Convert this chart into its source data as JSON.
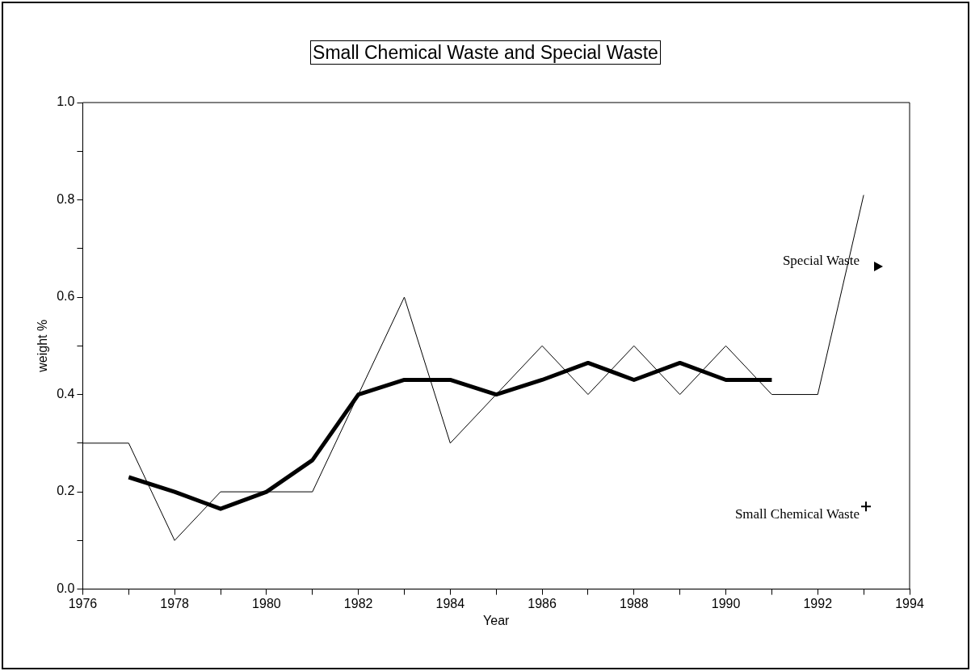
{
  "chart_data": {
    "type": "line",
    "title": "Small Chemical Waste and Special Waste",
    "xlabel": "Year",
    "ylabel": "weight %",
    "xlim": [
      1976,
      1994
    ],
    "xticks": [
      1976,
      {
        "value": 1977,
        "label": null
      },
      1978,
      {
        "value": 1979,
        "label": null
      },
      1980,
      {
        "value": 1981,
        "label": null
      },
      1982,
      {
        "value": 1983,
        "label": null
      },
      1984,
      {
        "value": 1985,
        "label": null
      },
      1986,
      {
        "value": 1987,
        "label": null
      },
      1988,
      {
        "value": 1989,
        "label": null
      },
      1990,
      {
        "value": 1991,
        "label": null
      },
      1992,
      {
        "value": 1993,
        "label": null
      },
      1994
    ],
    "ylim": [
      0,
      1
    ],
    "yticks": [
      {
        "value": 0,
        "label": "0.0"
      },
      {
        "value": 0.1,
        "label": null
      },
      0.2,
      {
        "value": 0.3,
        "label": null
      },
      0.4,
      {
        "value": 0.5,
        "label": null
      },
      0.6,
      {
        "value": 0.7,
        "label": null
      },
      0.8,
      {
        "value": 0.9,
        "label": null
      },
      {
        "value": 1,
        "label": "1.0"
      }
    ],
    "grid": false,
    "legend": "right",
    "marker": "none",
    "line_style": "solid",
    "series": [
      {
        "name": "Special Waste",
        "color": "#000000",
        "x": [
          1976,
          1977,
          1978,
          1979,
          1980,
          1981,
          1982,
          1983,
          1984,
          1985,
          1986,
          1987,
          1988,
          1989,
          1990,
          1991,
          1992,
          1993
        ],
        "values": [
          0.3,
          0.3,
          0.1,
          0.2,
          0.2,
          0.2,
          0.4,
          0.6,
          0.3,
          0.4,
          0.5,
          0.4,
          0.5,
          0.4,
          0.5,
          0.4,
          0.4,
          0.81
        ]
      },
      {
        "name": "Small Chemical Waste",
        "color": "#000000",
        "x": [
          1977,
          1978,
          1979,
          1980,
          1981,
          1982,
          1983,
          1984,
          1985,
          1986,
          1987,
          1988,
          1989,
          1990,
          1991
        ],
        "values": [
          0.23,
          0.2,
          0.165,
          0.2,
          0.265,
          0.4,
          0.43,
          0.43,
          0.4,
          0.43,
          0.465,
          0.43,
          0.465,
          0.43,
          0.43
        ]
      }
    ]
  }
}
